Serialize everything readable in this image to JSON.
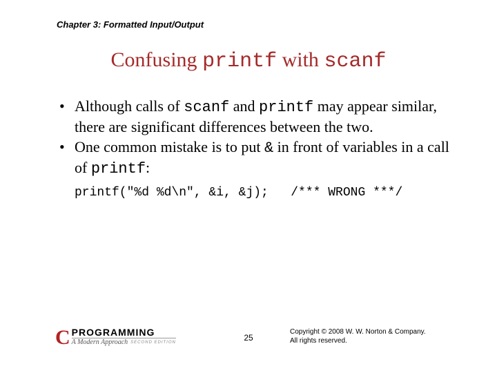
{
  "header": {
    "chapter": "Chapter 3: Formatted Input/Output"
  },
  "title": {
    "pre": "Confusing ",
    "code1": "printf",
    "mid": " with ",
    "code2": "scanf"
  },
  "bullets": [
    {
      "t0": "Although calls of ",
      "c0": "scanf",
      "t1": " and ",
      "c1": "printf",
      "t2": " may appear similar, there are significant differences between the two."
    },
    {
      "t0": "One common mistake is to put ",
      "c0": "&",
      "t1": " in front of variables in a call of ",
      "c1": "printf",
      "t2": ":"
    }
  ],
  "code": "printf(\"%d %d\\n\", &i, &j);   /*** WRONG ***/",
  "footer": {
    "logo_c": "C",
    "logo_prog": "PROGRAMMING",
    "logo_sub": "A Modern Approach",
    "logo_ed": "SECOND EDITION",
    "page": "25",
    "copyright_l1": "Copyright © 2008 W. W. Norton & Company.",
    "copyright_l2": "All rights reserved."
  },
  "colors": {
    "title": "#a52a2a",
    "logo_c": "#b22222",
    "background": "#ffffff",
    "text": "#000000"
  }
}
